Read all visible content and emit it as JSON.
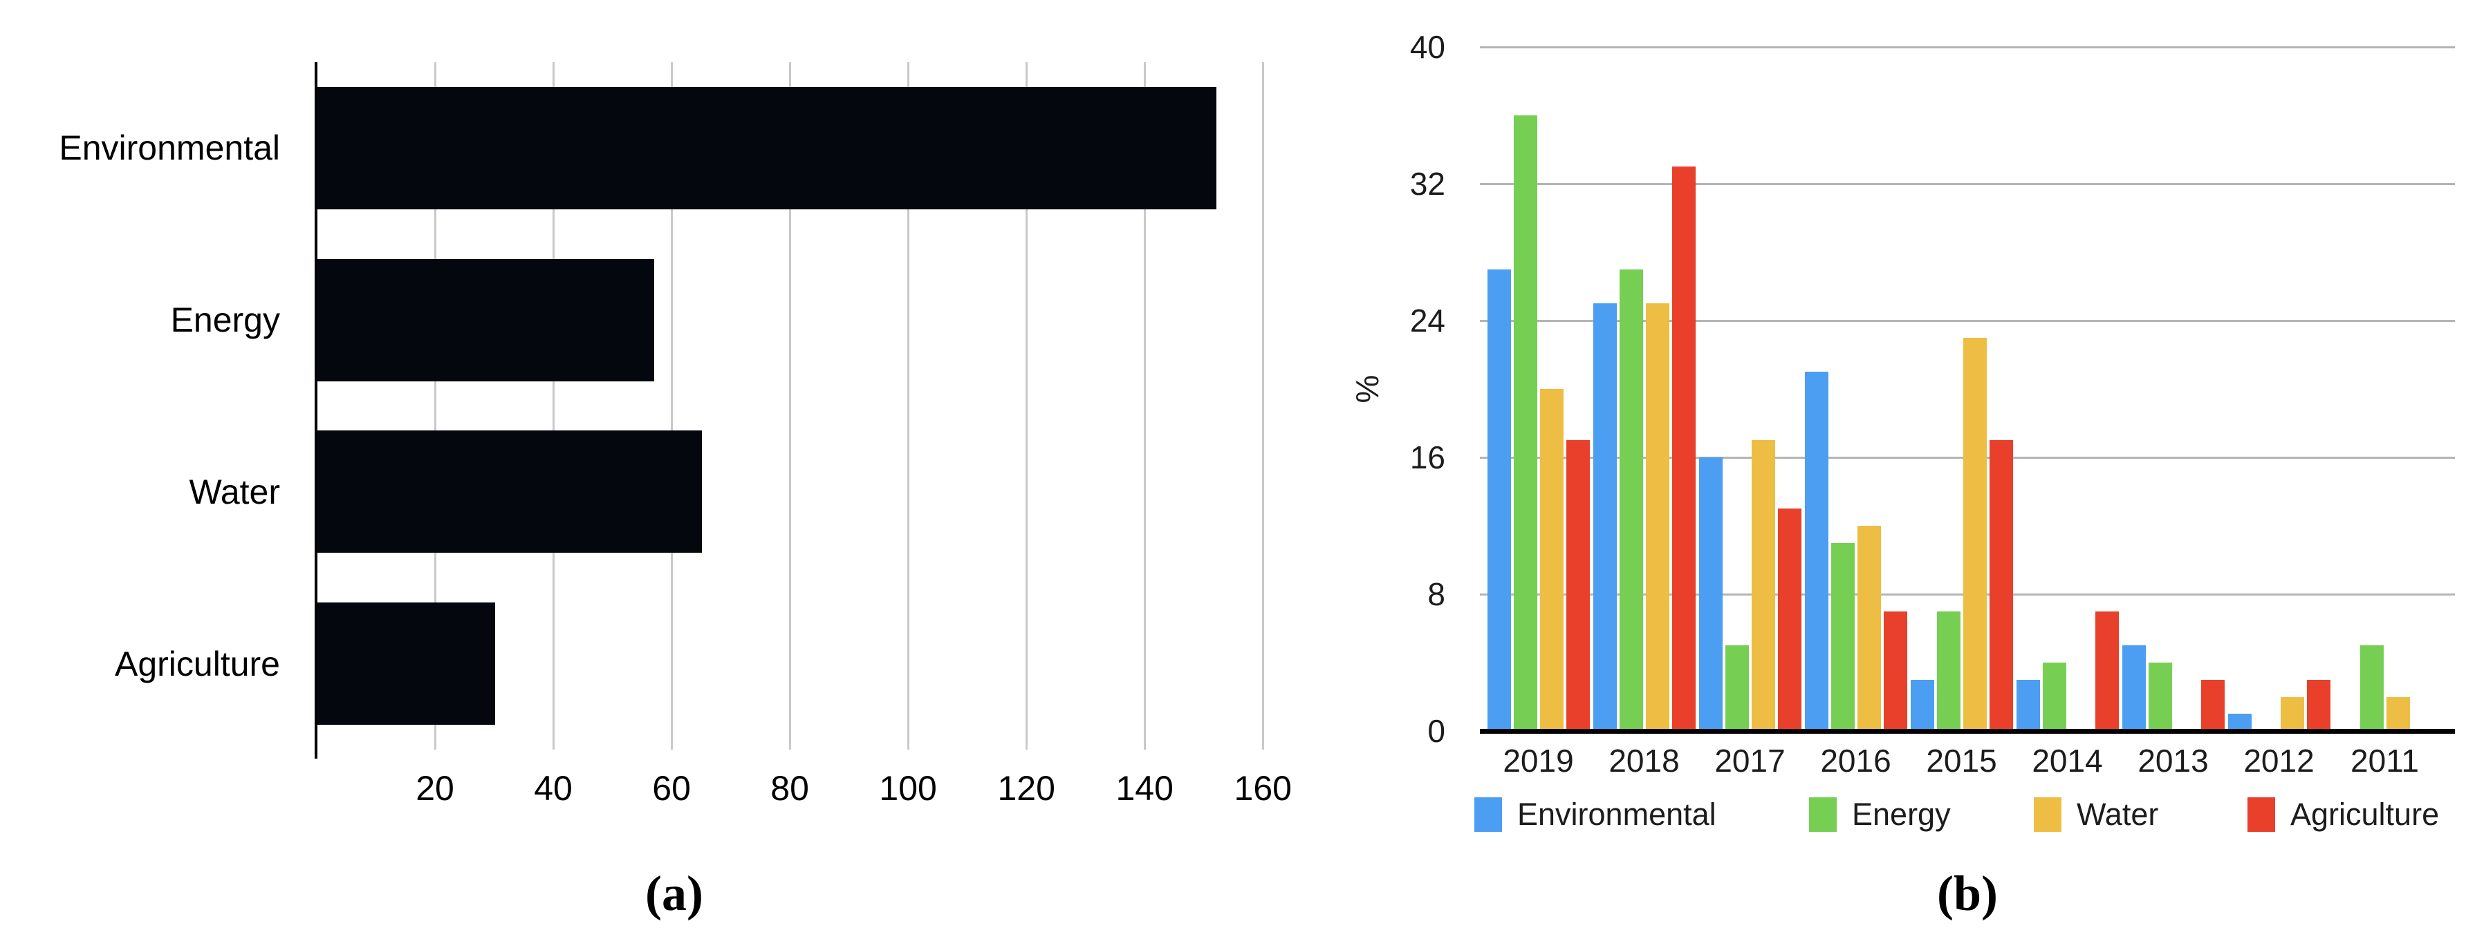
{
  "figure": {
    "panel_a_caption": "(a)",
    "panel_b_caption": "(b)"
  },
  "chart_data": [
    {
      "id": "panel-a",
      "type": "bar",
      "orientation": "horizontal",
      "title": "",
      "categories": [
        "Environmental",
        "Energy",
        "Water",
        "Agriculture"
      ],
      "values": [
        152,
        57,
        65,
        30
      ],
      "xlabel": "",
      "ylabel": "",
      "xlim": [
        0,
        165
      ],
      "xticks": [
        20,
        40,
        60,
        80,
        100,
        120,
        140,
        160
      ],
      "grid": "vertical",
      "bar_color": "#04080e",
      "gridline_color": "#c9c9c9",
      "axis_color": "#000000",
      "caption": "(a)"
    },
    {
      "id": "panel-b",
      "type": "grouped_bar",
      "orientation": "vertical",
      "title": "",
      "categories": [
        "2019",
        "2018",
        "2017",
        "2016",
        "2015",
        "2014",
        "2013",
        "2012",
        "2011"
      ],
      "series": [
        {
          "name": "Environmental",
          "color": "#4b9ef2",
          "values": [
            27,
            25,
            16,
            21,
            3,
            3,
            5,
            1,
            0
          ]
        },
        {
          "name": "Energy",
          "color": "#76cf53",
          "values": [
            36,
            27,
            5,
            11,
            7,
            4,
            4,
            0,
            5
          ]
        },
        {
          "name": "Water",
          "color": "#edbe43",
          "values": [
            20,
            25,
            17,
            12,
            23,
            0,
            0,
            2,
            2
          ]
        },
        {
          "name": "Agriculture",
          "color": "#e8402b",
          "values": [
            17,
            33,
            13,
            7,
            17,
            7,
            3,
            3,
            0
          ]
        }
      ],
      "xlabel": "",
      "ylabel": "%",
      "ylim": [
        0,
        40
      ],
      "yticks": [
        0,
        8,
        16,
        24,
        32,
        40
      ],
      "grid": "horizontal",
      "gridline_color": "#b4b4b4",
      "baseline_color": "#000000",
      "legend": {
        "position": "bottom",
        "items": [
          "Environmental",
          "Energy",
          "Water",
          "Agriculture"
        ]
      },
      "caption": "(b)"
    }
  ]
}
